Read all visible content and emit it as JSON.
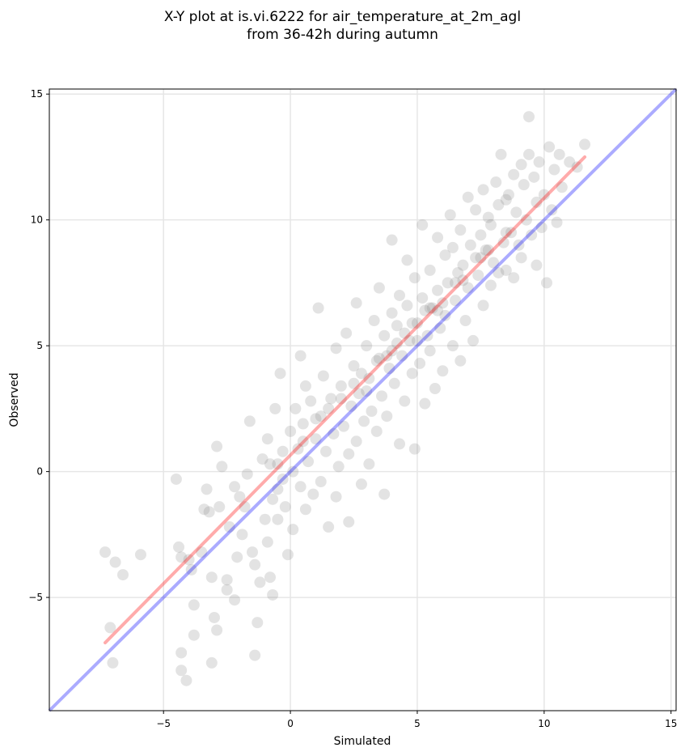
{
  "chart_data": {
    "type": "scatter",
    "title_line1": "X-Y plot at is.vi.6222 for air_temperature_at_2m_agl",
    "title_line2": "from 36-42h during autumn",
    "xlabel": "Simulated",
    "ylabel": "Observed",
    "xlim": [
      -9.5,
      15.2
    ],
    "ylim": [
      -9.5,
      15.2
    ],
    "xticks": [
      -5,
      0,
      5,
      10,
      15
    ],
    "yticks": [
      -5,
      0,
      5,
      10,
      15
    ],
    "xtick_labels": [
      "−5",
      "0",
      "5",
      "10",
      "15"
    ],
    "ytick_labels": [
      "−5",
      "0",
      "5",
      "10",
      "15"
    ],
    "grid": true,
    "point_color": "#7f7f7f",
    "identity_line": {
      "color": "#0000ff",
      "x": [
        -9.5,
        15.2
      ],
      "y": [
        -9.5,
        15.2
      ]
    },
    "fit_line": {
      "color": "#ff0000",
      "x": [
        -7.3,
        11.6
      ],
      "y": [
        -6.8,
        12.5
      ]
    },
    "series": [
      {
        "values": [
          [
            -7.3,
            -3.2
          ],
          [
            -7.1,
            -6.2
          ],
          [
            -7.0,
            -7.6
          ],
          [
            -6.9,
            -3.6
          ],
          [
            -6.6,
            -4.1
          ],
          [
            -5.9,
            -3.3
          ],
          [
            -4.5,
            -0.3
          ],
          [
            -4.4,
            -3.0
          ],
          [
            -4.3,
            -3.4
          ],
          [
            -4.3,
            -7.2
          ],
          [
            -4.3,
            -7.9
          ],
          [
            -4.1,
            -8.3
          ],
          [
            -4.0,
            -3.5
          ],
          [
            -3.9,
            -3.9
          ],
          [
            -3.8,
            -6.5
          ],
          [
            -3.8,
            -5.3
          ],
          [
            -3.5,
            -3.2
          ],
          [
            -3.4,
            -1.5
          ],
          [
            -3.3,
            -0.7
          ],
          [
            -3.2,
            -1.6
          ],
          [
            -3.1,
            -4.2
          ],
          [
            -3.1,
            -7.6
          ],
          [
            -3.0,
            -5.8
          ],
          [
            -2.9,
            -6.3
          ],
          [
            -2.9,
            1.0
          ],
          [
            -2.8,
            -1.4
          ],
          [
            -2.7,
            0.2
          ],
          [
            -2.5,
            -4.3
          ],
          [
            -2.5,
            -4.7
          ],
          [
            -2.4,
            -2.2
          ],
          [
            -2.2,
            -0.6
          ],
          [
            -2.2,
            -5.1
          ],
          [
            -2.1,
            -3.4
          ],
          [
            -2.0,
            -1.0
          ],
          [
            -1.9,
            -2.5
          ],
          [
            -1.8,
            -1.4
          ],
          [
            -1.7,
            -0.1
          ],
          [
            -1.6,
            2.0
          ],
          [
            -1.5,
            -3.2
          ],
          [
            -1.4,
            -7.3
          ],
          [
            -1.4,
            -3.7
          ],
          [
            -1.3,
            -6.0
          ],
          [
            -1.2,
            -4.4
          ],
          [
            -1.1,
            0.5
          ],
          [
            -1.0,
            -1.9
          ],
          [
            -0.9,
            1.3
          ],
          [
            -0.9,
            -2.8
          ],
          [
            -0.8,
            0.3
          ],
          [
            -0.8,
            -4.2
          ],
          [
            -0.7,
            -4.9
          ],
          [
            -0.7,
            -1.1
          ],
          [
            -0.6,
            2.5
          ],
          [
            -0.5,
            -0.7
          ],
          [
            -0.5,
            -1.9
          ],
          [
            -0.4,
            3.9
          ],
          [
            -0.3,
            0.8
          ],
          [
            -0.3,
            -0.3
          ],
          [
            -0.2,
            -1.4
          ],
          [
            -0.1,
            -3.3
          ],
          [
            0.0,
            1.6
          ],
          [
            0.1,
            0.0
          ],
          [
            0.1,
            -2.3
          ],
          [
            0.2,
            2.5
          ],
          [
            0.3,
            0.9
          ],
          [
            0.4,
            4.6
          ],
          [
            0.4,
            -0.6
          ],
          [
            0.5,
            1.9
          ],
          [
            0.6,
            -1.5
          ],
          [
            0.6,
            3.4
          ],
          [
            0.7,
            0.4
          ],
          [
            0.8,
            2.8
          ],
          [
            0.9,
            -0.9
          ],
          [
            1.0,
            1.3
          ],
          [
            1.1,
            6.5
          ],
          [
            1.2,
            2.2
          ],
          [
            1.2,
            -0.4
          ],
          [
            1.3,
            3.8
          ],
          [
            1.4,
            0.8
          ],
          [
            1.5,
            -2.2
          ],
          [
            1.6,
            2.9
          ],
          [
            1.7,
            1.5
          ],
          [
            1.8,
            4.9
          ],
          [
            1.8,
            -1.0
          ],
          [
            1.9,
            0.2
          ],
          [
            2.0,
            3.4
          ],
          [
            2.1,
            1.8
          ],
          [
            2.2,
            5.5
          ],
          [
            2.3,
            0.7
          ],
          [
            2.3,
            -2.0
          ],
          [
            2.4,
            2.6
          ],
          [
            2.5,
            4.2
          ],
          [
            2.6,
            1.2
          ],
          [
            2.6,
            6.7
          ],
          [
            2.7,
            3.1
          ],
          [
            2.8,
            -0.5
          ],
          [
            2.9,
            2.0
          ],
          [
            3.0,
            5.0
          ],
          [
            3.1,
            3.7
          ],
          [
            3.1,
            0.3
          ],
          [
            3.2,
            2.4
          ],
          [
            3.3,
            6.0
          ],
          [
            3.4,
            4.4
          ],
          [
            3.4,
            1.6
          ],
          [
            3.5,
            7.3
          ],
          [
            3.6,
            3.0
          ],
          [
            3.7,
            5.4
          ],
          [
            3.7,
            -0.9
          ],
          [
            3.8,
            2.2
          ],
          [
            3.9,
            4.1
          ],
          [
            4.0,
            6.3
          ],
          [
            4.0,
            9.2
          ],
          [
            4.1,
            3.5
          ],
          [
            4.2,
            5.8
          ],
          [
            4.3,
            1.1
          ],
          [
            4.3,
            7.0
          ],
          [
            4.4,
            4.6
          ],
          [
            4.5,
            2.8
          ],
          [
            4.6,
            6.6
          ],
          [
            4.6,
            8.4
          ],
          [
            4.7,
            5.2
          ],
          [
            4.8,
            3.9
          ],
          [
            4.9,
            7.7
          ],
          [
            4.9,
            0.9
          ],
          [
            5.0,
            5.9
          ],
          [
            5.1,
            4.3
          ],
          [
            5.2,
            9.8
          ],
          [
            5.2,
            6.9
          ],
          [
            5.3,
            2.7
          ],
          [
            5.4,
            5.4
          ],
          [
            5.5,
            8.0
          ],
          [
            5.5,
            4.8
          ],
          [
            5.6,
            6.5
          ],
          [
            5.7,
            3.3
          ],
          [
            5.8,
            7.2
          ],
          [
            5.8,
            9.3
          ],
          [
            5.9,
            5.7
          ],
          [
            6.0,
            4.0
          ],
          [
            6.1,
            8.6
          ],
          [
            6.1,
            6.2
          ],
          [
            6.2,
            7.5
          ],
          [
            6.3,
            10.2
          ],
          [
            6.4,
            5.0
          ],
          [
            6.4,
            8.9
          ],
          [
            6.5,
            6.8
          ],
          [
            6.6,
            7.9
          ],
          [
            6.7,
            4.4
          ],
          [
            6.7,
            9.6
          ],
          [
            6.8,
            8.2
          ],
          [
            6.9,
            6.0
          ],
          [
            7.0,
            10.9
          ],
          [
            7.0,
            7.3
          ],
          [
            7.1,
            9.0
          ],
          [
            7.2,
            5.2
          ],
          [
            7.3,
            8.5
          ],
          [
            7.3,
            10.4
          ],
          [
            7.4,
            7.8
          ],
          [
            7.5,
            9.4
          ],
          [
            7.6,
            6.6
          ],
          [
            7.6,
            11.2
          ],
          [
            7.7,
            8.8
          ],
          [
            7.8,
            10.1
          ],
          [
            7.9,
            7.4
          ],
          [
            7.9,
            9.8
          ],
          [
            8.0,
            8.3
          ],
          [
            8.1,
            11.5
          ],
          [
            8.2,
            10.6
          ],
          [
            8.2,
            7.9
          ],
          [
            8.3,
            12.6
          ],
          [
            8.4,
            9.1
          ],
          [
            8.5,
            10.8
          ],
          [
            8.5,
            8.0
          ],
          [
            8.6,
            11.0
          ],
          [
            8.7,
            9.5
          ],
          [
            8.8,
            7.7
          ],
          [
            8.8,
            11.8
          ],
          [
            8.9,
            10.3
          ],
          [
            9.0,
            9.0
          ],
          [
            9.1,
            12.2
          ],
          [
            9.1,
            8.5
          ],
          [
            9.2,
            11.4
          ],
          [
            9.3,
            10.0
          ],
          [
            9.4,
            14.1
          ],
          [
            9.4,
            12.6
          ],
          [
            9.5,
            9.4
          ],
          [
            9.6,
            11.7
          ],
          [
            9.7,
            8.2
          ],
          [
            9.7,
            10.7
          ],
          [
            9.8,
            12.3
          ],
          [
            9.9,
            9.7
          ],
          [
            10.0,
            11.0
          ],
          [
            10.1,
            7.5
          ],
          [
            10.2,
            12.9
          ],
          [
            10.3,
            10.4
          ],
          [
            10.4,
            12.0
          ],
          [
            10.5,
            9.9
          ],
          [
            10.6,
            12.6
          ],
          [
            10.7,
            11.3
          ],
          [
            11.0,
            12.3
          ],
          [
            11.3,
            12.1
          ],
          [
            11.6,
            13.0
          ],
          [
            1.5,
            2.5
          ],
          [
            2.5,
            3.5
          ],
          [
            3.5,
            4.5
          ],
          [
            4.5,
            5.5
          ],
          [
            5.5,
            6.5
          ],
          [
            6.5,
            7.5
          ],
          [
            7.5,
            8.5
          ],
          [
            8.5,
            9.5
          ],
          [
            3.0,
            3.2
          ],
          [
            4.0,
            4.8
          ],
          [
            5.0,
            5.2
          ],
          [
            6.0,
            6.7
          ],
          [
            2.0,
            2.9
          ],
          [
            3.8,
            4.6
          ],
          [
            4.8,
            5.9
          ],
          [
            5.8,
            6.4
          ],
          [
            6.8,
            7.6
          ],
          [
            7.8,
            8.8
          ],
          [
            0.5,
            1.2
          ],
          [
            -0.5,
            0.3
          ],
          [
            1.0,
            2.1
          ],
          [
            2.8,
            3.9
          ],
          [
            4.2,
            5.1
          ],
          [
            5.3,
            6.4
          ]
        ]
      }
    ]
  }
}
